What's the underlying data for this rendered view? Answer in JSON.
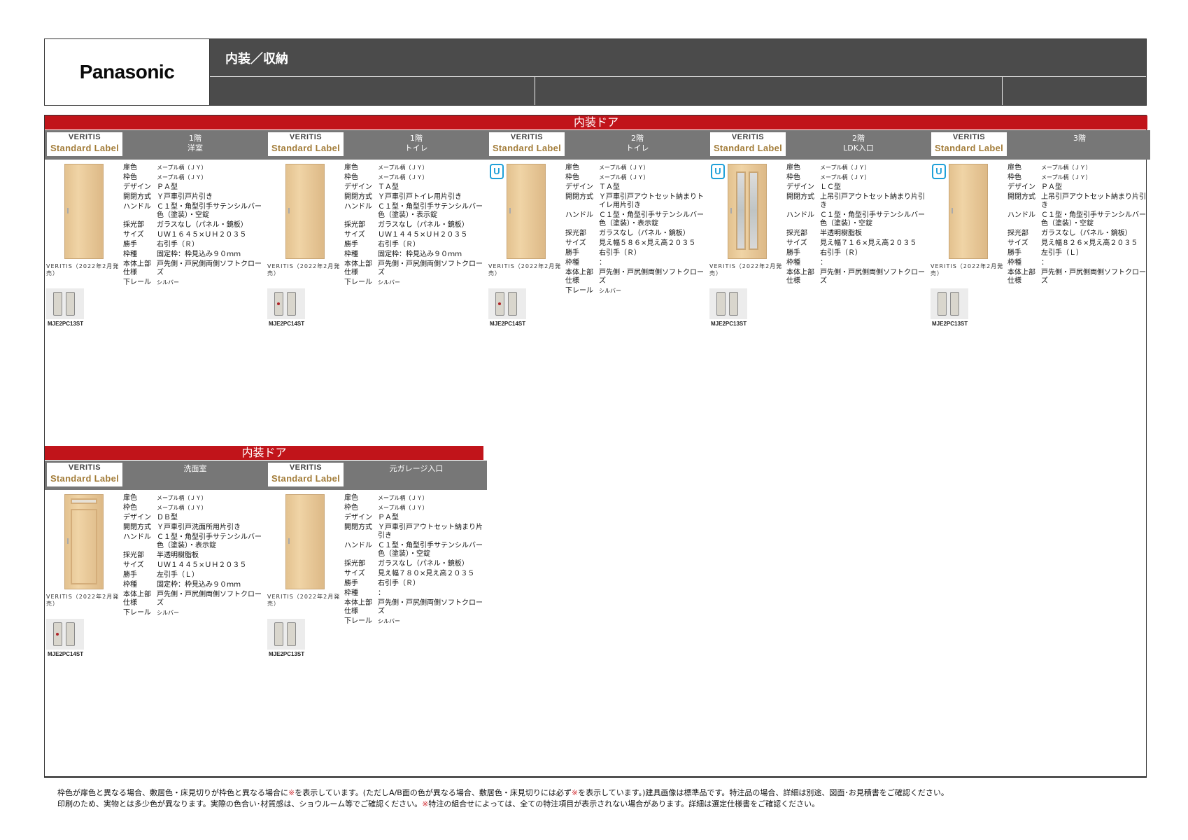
{
  "header": {
    "logo": "Panasonic",
    "title": "内装／収納"
  },
  "sections": [
    {
      "label": "内装ドア"
    },
    {
      "label": "内装ドア"
    }
  ],
  "spec_keys": [
    "扉色",
    "枠色",
    "デザイン",
    "開閉方式",
    "ハンドル",
    "採光部",
    "サイズ",
    "勝手",
    "枠種",
    "本体上部仕様",
    "下レール"
  ],
  "badge": {
    "line1": "VERITIS",
    "line2": "Standard Label"
  },
  "cards": [
    {
      "title1": "1階",
      "title2": "洋室",
      "u": "",
      "caption": "VERITIS（2022年2月発売）",
      "handle_code": "MJE2PC13ST",
      "specs": [
        {
          "k": "扉色",
          "v": "メープル柄（ＪＹ）"
        },
        {
          "k": "枠色",
          "v": "メープル柄（ＪＹ）"
        },
        {
          "k": "デザイン",
          "v": "ＰＡ型"
        },
        {
          "k": "開閉方式",
          "v": "Ｙ戸車引戸片引き"
        },
        {
          "k": "ハンドル",
          "v": "Ｃ１型・角型引手サテンシルバー色（塗装）・空錠"
        },
        {
          "k": "採光部",
          "v": "ガラスなし（パネル・鏡板）"
        },
        {
          "k": "サイズ",
          "v": "ＵＷ１６４５×ＵＨ２０３５"
        },
        {
          "k": "勝手",
          "v": "右引手（Ｒ）"
        },
        {
          "k": "枠種",
          "v": "固定枠：枠見込み９０ｍｍ"
        },
        {
          "k": "本体上部仕様",
          "v": "戸先側・戸尻側両側ソフトクローズ"
        },
        {
          "k": "下レール",
          "v": "シルバー"
        }
      ]
    },
    {
      "title1": "1階",
      "title2": "トイレ",
      "u": "",
      "caption": "VERITIS（2022年2月発売）",
      "handle_code": "MJE2PC14ST",
      "specs": [
        {
          "k": "扉色",
          "v": "メープル柄（ＪＹ）"
        },
        {
          "k": "枠色",
          "v": "メープル柄（ＪＹ）"
        },
        {
          "k": "デザイン",
          "v": "ＴＡ型"
        },
        {
          "k": "開閉方式",
          "v": "Ｙ戸車引戸トイレ用片引き"
        },
        {
          "k": "ハンドル",
          "v": "Ｃ１型・角型引手サテンシルバー色（塗装）・表示錠"
        },
        {
          "k": "採光部",
          "v": "ガラスなし（パネル・鏡板）"
        },
        {
          "k": "サイズ",
          "v": "ＵＷ１４４５×ＵＨ２０３５"
        },
        {
          "k": "勝手",
          "v": "右引手（Ｒ）"
        },
        {
          "k": "枠種",
          "v": "固定枠：枠見込み９０ｍｍ"
        },
        {
          "k": "本体上部仕様",
          "v": "戸先側・戸尻側両側ソフトクローズ"
        },
        {
          "k": "下レール",
          "v": "シルバー"
        }
      ]
    },
    {
      "title1": "2階",
      "title2": "トイレ",
      "u": "U",
      "caption": "VERITIS（2022年2月発売）",
      "handle_code": "MJE2PC14ST",
      "specs": [
        {
          "k": "扉色",
          "v": "メープル柄（ＪＹ）"
        },
        {
          "k": "枠色",
          "v": "メープル柄（ＪＹ）"
        },
        {
          "k": "デザイン",
          "v": "ＴＡ型"
        },
        {
          "k": "開閉方式",
          "v": "Ｙ戸車引戸アウトセット納まりトイレ用片引き"
        },
        {
          "k": "ハンドル",
          "v": "Ｃ１型・角型引手サテンシルバー色（塗装）・表示錠"
        },
        {
          "k": "採光部",
          "v": "ガラスなし（パネル・鏡板）"
        },
        {
          "k": "サイズ",
          "v": "見え幅５８６×見え高２０３５"
        },
        {
          "k": "勝手",
          "v": "右引手（Ｒ）"
        },
        {
          "k": "枠種",
          "v": "："
        },
        {
          "k": "本体上部仕様",
          "v": "戸先側・戸尻側両側ソフトクローズ"
        },
        {
          "k": "下レール",
          "v": "シルバー"
        }
      ]
    },
    {
      "title1": "2階",
      "title2": "LDK入口",
      "u": "U",
      "caption": "VERITIS（2022年2月発売）",
      "handle_code": "MJE2PC13ST",
      "specs": [
        {
          "k": "扉色",
          "v": "メープル柄（ＪＹ）"
        },
        {
          "k": "枠色",
          "v": "メープル柄（ＪＹ）"
        },
        {
          "k": "デザイン",
          "v": "ＬＣ型"
        },
        {
          "k": "開閉方式",
          "v": "上吊引戸アウトセット納まり片引き"
        },
        {
          "k": "ハンドル",
          "v": "Ｃ１型・角型引手サテンシルバー色（塗装）・空錠"
        },
        {
          "k": "採光部",
          "v": "半透明樹脂板"
        },
        {
          "k": "サイズ",
          "v": "見え幅７１６×見え高２０３５"
        },
        {
          "k": "勝手",
          "v": "右引手（Ｒ）"
        },
        {
          "k": "枠種",
          "v": "："
        },
        {
          "k": "本体上部仕様",
          "v": "戸先側・戸尻側両側ソフトクローズ"
        }
      ]
    },
    {
      "title1": "3階",
      "title2": "",
      "u": "U",
      "caption": "VERITIS（2022年2月発売）",
      "handle_code": "MJE2PC13ST",
      "specs": [
        {
          "k": "扉色",
          "v": "メープル柄（ＪＹ）"
        },
        {
          "k": "枠色",
          "v": "メープル柄（ＪＹ）"
        },
        {
          "k": "デザイン",
          "v": "ＰＡ型"
        },
        {
          "k": "開閉方式",
          "v": "上吊引戸アウトセット納まり片引き"
        },
        {
          "k": "ハンドル",
          "v": "Ｃ１型・角型引手サテンシルバー色（塗装）・空錠"
        },
        {
          "k": "採光部",
          "v": "ガラスなし（パネル・鏡板）"
        },
        {
          "k": "サイズ",
          "v": "見え幅８２６×見え高２０３５"
        },
        {
          "k": "勝手",
          "v": "左引手（Ｌ）"
        },
        {
          "k": "枠種",
          "v": "："
        },
        {
          "k": "本体上部仕様",
          "v": "戸先側・戸尻側両側ソフトクローズ"
        }
      ]
    },
    {
      "title1": "洗面室",
      "title2": "",
      "u": "",
      "caption": "VERITIS（2022年2月発売）",
      "handle_code": "MJE2PC14ST",
      "specs": [
        {
          "k": "扉色",
          "v": "メープル柄（ＪＹ）"
        },
        {
          "k": "枠色",
          "v": "メープル柄（ＪＹ）"
        },
        {
          "k": "デザイン",
          "v": "ＤＢ型"
        },
        {
          "k": "開閉方式",
          "v": "Ｙ戸車引戸洗面所用片引き"
        },
        {
          "k": "ハンドル",
          "v": "Ｃ１型・角型引手サテンシルバー色（塗装）・表示錠"
        },
        {
          "k": "採光部",
          "v": "半透明樹脂板"
        },
        {
          "k": "サイズ",
          "v": "ＵＷ１４４５×ＵＨ２０３５"
        },
        {
          "k": "勝手",
          "v": "左引手（Ｌ）"
        },
        {
          "k": "枠種",
          "v": "固定枠：枠見込み９０ｍｍ"
        },
        {
          "k": "本体上部仕様",
          "v": "戸先側・戸尻側両側ソフトクローズ"
        },
        {
          "k": "下レール",
          "v": "シルバー"
        }
      ]
    },
    {
      "title1": "元ガレージ入口",
      "title2": "",
      "u": "",
      "caption": "VERITIS（2022年2月発売）",
      "handle_code": "MJE2PC13ST",
      "specs": [
        {
          "k": "扉色",
          "v": "メープル柄（ＪＹ）"
        },
        {
          "k": "枠色",
          "v": "メープル柄（ＪＹ）"
        },
        {
          "k": "デザイン",
          "v": "ＰＡ型"
        },
        {
          "k": "開閉方式",
          "v": "Ｙ戸車引戸アウトセット納まり片引き"
        },
        {
          "k": "ハンドル",
          "v": "Ｃ１型・角型引手サテンシルバー色（塗装）・空錠"
        },
        {
          "k": "採光部",
          "v": "ガラスなし（パネル・鏡板）"
        },
        {
          "k": "サイズ",
          "v": "見え幅７８０×見え高２０３５"
        },
        {
          "k": "勝手",
          "v": "右引手（Ｒ）"
        },
        {
          "k": "枠種",
          "v": "："
        },
        {
          "k": "本体上部仕様",
          "v": "戸先側・戸尻側両側ソフトクローズ"
        },
        {
          "k": "下レール",
          "v": "シルバー"
        }
      ]
    }
  ],
  "footer": {
    "line1a": "枠色が扉色と異なる場合、敷居色・床見切りが枠色と異なる場合に",
    "mark": "※",
    "line1b": "を表示しています。(ただしA/B面の色が異なる場合、敷居色・床見切りには必ず",
    "line1c": "を表示しています。)建具画像は標準品です。特注品の場合、詳細は別途、図面･お見積書をご確認ください。",
    "line2a": "印刷のため、実物とは多少色が異なります。実際の色合い･材質感は、ショウルーム等でご確認ください。",
    "line2b": "特注の組合せによっては、全ての特注項目が表示されない場合があります。詳細は選定仕様書をご確認ください。"
  }
}
